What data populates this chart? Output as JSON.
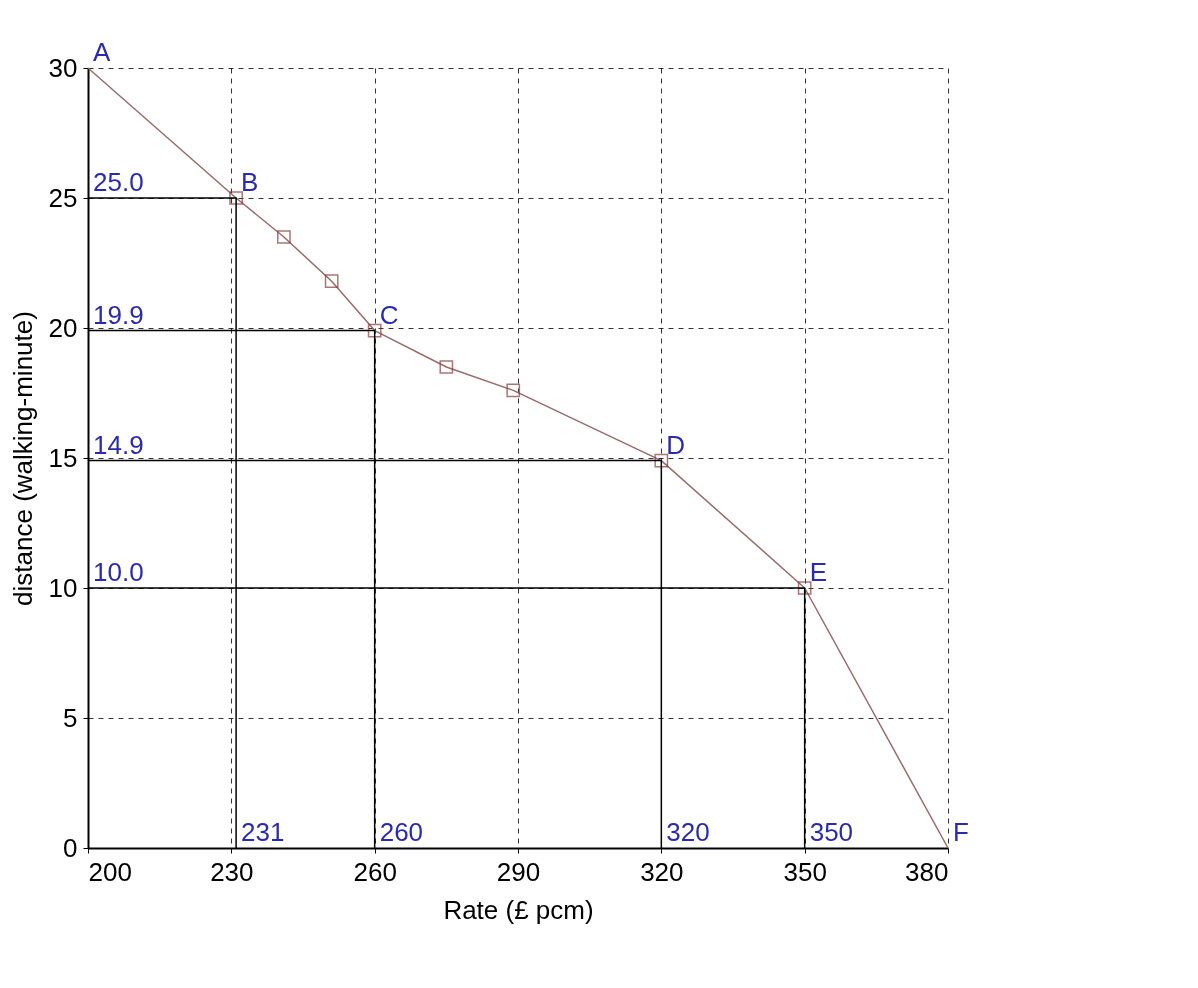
{
  "chart_data": {
    "type": "line",
    "xlabel": "Rate (£ pcm)",
    "ylabel": "distance (walking-minute)",
    "xlim": [
      200,
      380
    ],
    "ylim": [
      0,
      30
    ],
    "xticks": [
      200,
      230,
      260,
      290,
      320,
      350,
      380
    ],
    "yticks": [
      0,
      5,
      10,
      15,
      20,
      25,
      30
    ],
    "grid": true,
    "series": [
      {
        "color": "#9a6b6b",
        "marker": "none",
        "x": [
          200,
          231,
          241,
          251,
          260,
          275,
          289,
          320,
          350,
          380
        ],
        "values": [
          30,
          25,
          23.5,
          21.8,
          19.9,
          18.5,
          17.6,
          14.9,
          10,
          0
        ]
      },
      {
        "type": "scatter",
        "color": "#8b3a3a",
        "marker": "square",
        "x": [
          231,
          241,
          251,
          260,
          275,
          289,
          320,
          350
        ],
        "values": [
          25,
          23.5,
          21.8,
          19.9,
          18.5,
          17.6,
          14.9,
          10
        ]
      },
      {
        "type": "line",
        "color": "#000000",
        "marker": "none",
        "x": [
          200,
          231,
          231
        ],
        "values": [
          25,
          25,
          0
        ]
      },
      {
        "type": "line",
        "color": "#000000",
        "marker": "none",
        "x": [
          200,
          260,
          260
        ],
        "values": [
          19.9,
          19.9,
          0
        ]
      },
      {
        "type": "line",
        "color": "#000000",
        "marker": "none",
        "x": [
          200,
          320,
          320
        ],
        "values": [
          14.9,
          14.9,
          0
        ]
      },
      {
        "type": "line",
        "color": "#000000",
        "marker": "none",
        "x": [
          200,
          350,
          350
        ],
        "values": [
          10,
          10,
          0
        ]
      }
    ],
    "annotations": [
      {
        "text": "A",
        "x": 200,
        "y": 30
      },
      {
        "text": "B",
        "x": 231,
        "y": 25
      },
      {
        "text": "C",
        "x": 260,
        "y": 19.9
      },
      {
        "text": "D",
        "x": 320,
        "y": 14.9
      },
      {
        "text": "E",
        "x": 350,
        "y": 10
      },
      {
        "text": "F",
        "x": 380,
        "y": 0
      },
      {
        "text": "25.0",
        "x": 200,
        "y": 25
      },
      {
        "text": "19.9",
        "x": 200,
        "y": 19.9
      },
      {
        "text": "14.9",
        "x": 200,
        "y": 14.9
      },
      {
        "text": "10.0",
        "x": 200,
        "y": 10
      },
      {
        "text": "231",
        "x": 231,
        "y": 0
      },
      {
        "text": "260",
        "x": 260,
        "y": 0
      },
      {
        "text": "320",
        "x": 320,
        "y": 0
      },
      {
        "text": "350",
        "x": 350,
        "y": 0
      }
    ]
  }
}
